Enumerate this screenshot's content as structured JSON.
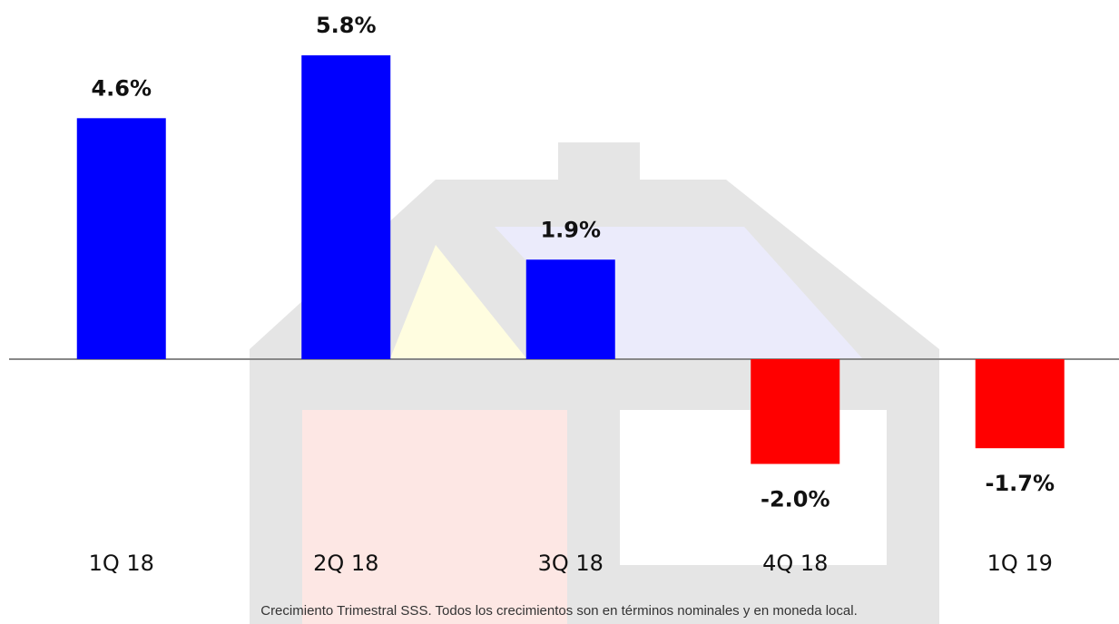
{
  "chart_data": {
    "type": "bar",
    "categories": [
      "1Q 18",
      "2Q 18",
      "3Q 18",
      "4Q 18",
      "1Q 19"
    ],
    "values": [
      4.6,
      5.8,
      1.9,
      -2.0,
      -1.7
    ],
    "value_labels": [
      "4.6%",
      "5.8%",
      "1.9%",
      "-2.0%",
      "-1.7%"
    ],
    "positive_color": "#0000ff",
    "negative_color": "#ff0000",
    "caption": "Crecimiento Trimestral SSS. Todos los crecimientos son en términos nominales y en moneda local."
  }
}
